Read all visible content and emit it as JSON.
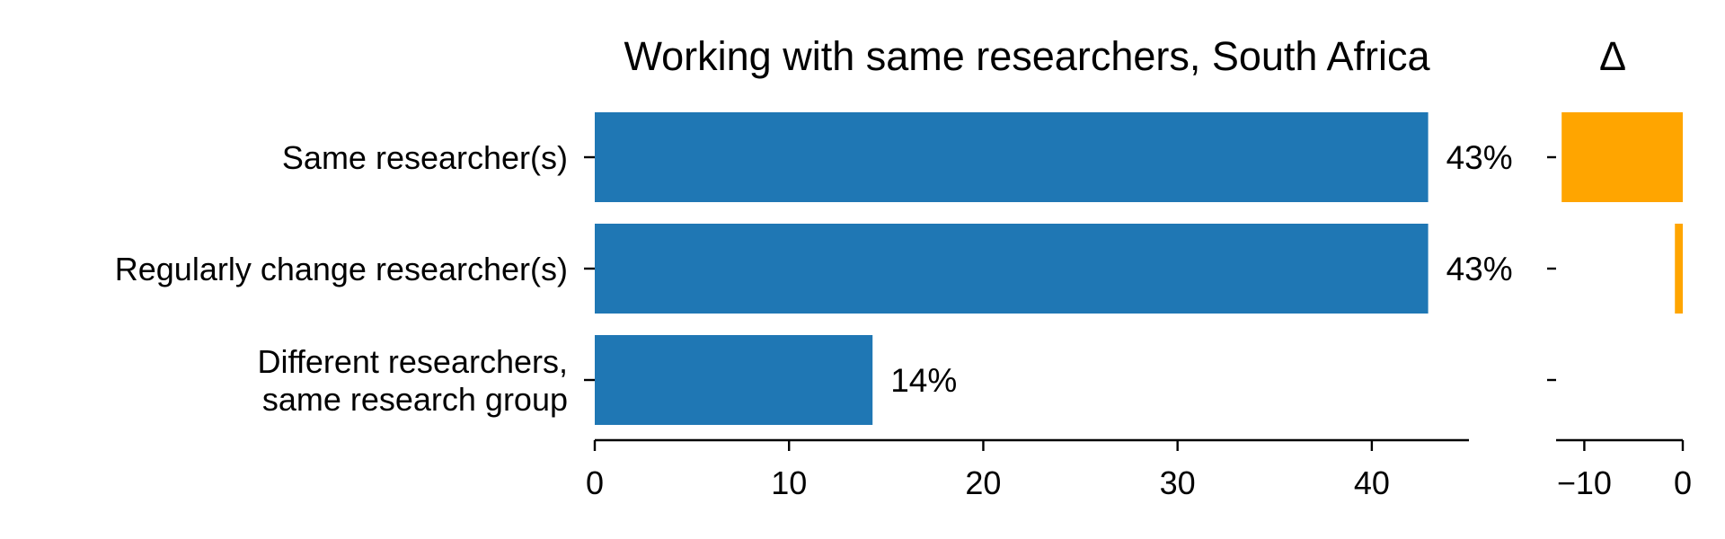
{
  "chart_data": [
    {
      "type": "bar",
      "orientation": "horizontal",
      "title": "Working with same researchers, South Africa",
      "categories": [
        [
          "Same researcher(s)"
        ],
        [
          "Regularly change researcher(s)"
        ],
        [
          "Different researchers,",
          "same research group"
        ]
      ],
      "values": [
        42.9,
        42.9,
        14.3
      ],
      "data_labels": [
        "43%",
        "43%",
        "14%"
      ],
      "xlim": [
        0,
        45
      ],
      "xticks": [
        0,
        10,
        20,
        30,
        40
      ],
      "xlabel": "",
      "ylabel": "",
      "color": "#1f77b4"
    },
    {
      "type": "bar",
      "orientation": "horizontal",
      "title": "Δ",
      "values": [
        -12.3,
        -0.8,
        0
      ],
      "xlim": [
        -12.5,
        0
      ],
      "xticks": [
        -10,
        0
      ],
      "xtick_labels": [
        "−10",
        "0"
      ],
      "xlabel": "",
      "ylabel": "",
      "color": "#ffa500"
    }
  ]
}
